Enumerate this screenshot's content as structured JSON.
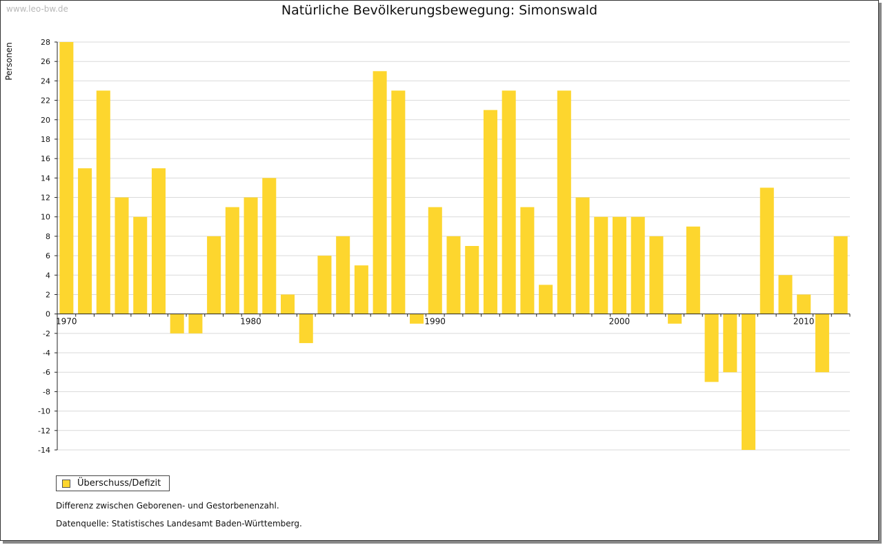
{
  "watermark": "www.leo-bw.de",
  "chart_data": {
    "type": "bar",
    "title": "Natürliche Bevölkerungsbewegung: Simonswald",
    "ylabel": "Personen",
    "xlabel": "",
    "ylim": [
      -14,
      28
    ],
    "yticks": [
      28,
      26,
      24,
      22,
      20,
      18,
      16,
      14,
      12,
      10,
      8,
      6,
      4,
      2,
      0,
      -2,
      -4,
      -6,
      -8,
      -10,
      -12,
      -14
    ],
    "xtick_labels": [
      "1970",
      "1980",
      "1990",
      "2000",
      "2010"
    ],
    "grid": true,
    "bar_color": "#fdd62e",
    "categories": [
      1970,
      1971,
      1972,
      1973,
      1974,
      1975,
      1976,
      1977,
      1978,
      1979,
      1980,
      1981,
      1982,
      1983,
      1984,
      1985,
      1986,
      1987,
      1988,
      1989,
      1990,
      1991,
      1992,
      1993,
      1994,
      1995,
      1996,
      1997,
      1998,
      1999,
      2000,
      2001,
      2002,
      2003,
      2004,
      2005,
      2006,
      2007,
      2008,
      2009,
      2010,
      2011,
      2012
    ],
    "series": [
      {
        "name": "Überschuss/Defizit",
        "values": [
          28,
          15,
          23,
          12,
          10,
          15,
          -2,
          -2,
          8,
          11,
          12,
          14,
          2,
          -3,
          6,
          8,
          5,
          25,
          23,
          -1,
          11,
          8,
          7,
          21,
          23,
          11,
          3,
          23,
          12,
          10,
          10,
          10,
          8,
          -1,
          9,
          -7,
          -6,
          -14,
          13,
          4,
          2,
          -6,
          8
        ]
      }
    ]
  },
  "legend": {
    "label": "Überschuss/Defizit"
  },
  "notes": {
    "description": "Differenz zwischen Geborenen- und Gestorbenenzahl.",
    "source": "Datenquelle: Statistisches Landesamt Baden-Württemberg."
  }
}
